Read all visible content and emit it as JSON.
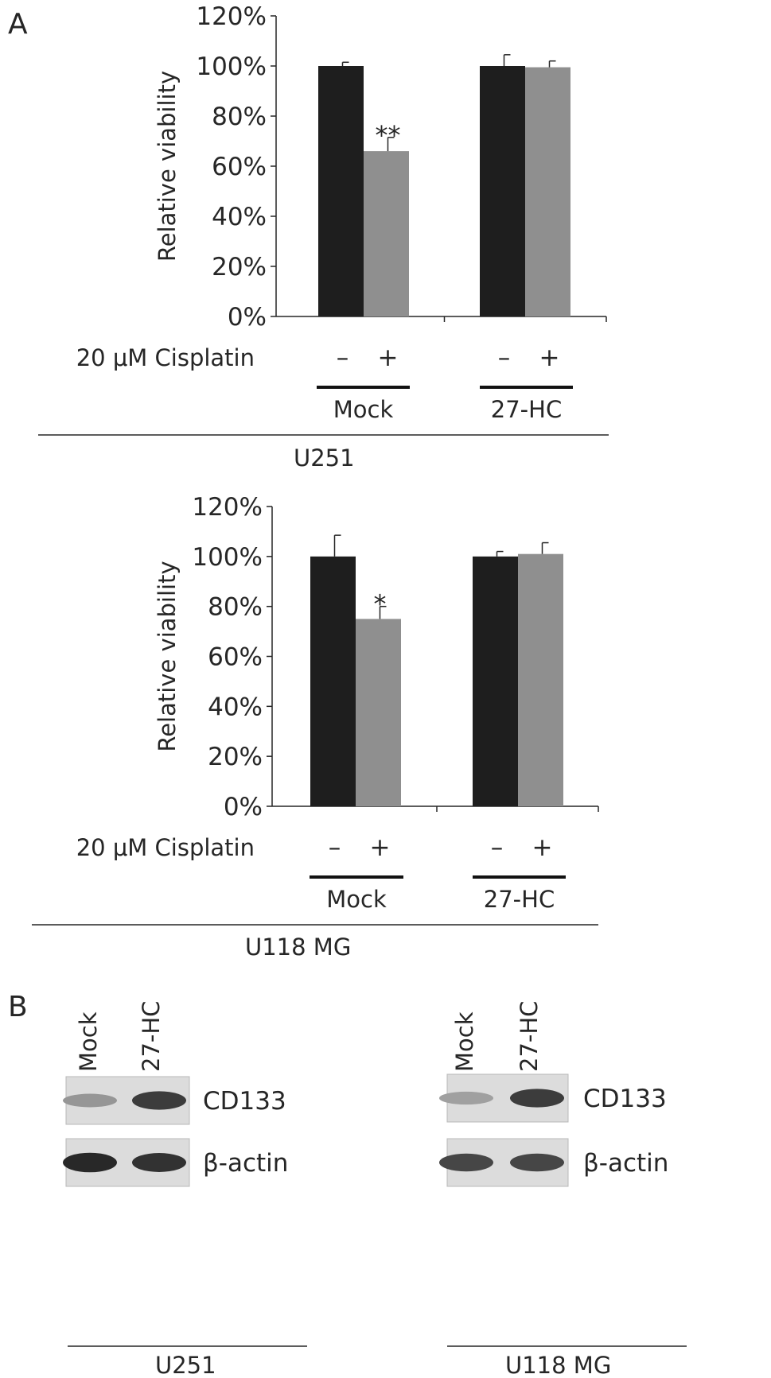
{
  "panel_labels": {
    "a": "A",
    "b": "B"
  },
  "colors": {
    "untreated": "#1e1e1e",
    "cisplatin": "#8f8f8f",
    "axis": "#262626",
    "blot_bg": "#dcdcdc"
  },
  "chart_data": [
    {
      "type": "bar",
      "cell_line": "U251",
      "ylabel": "Relative viability",
      "ylim": [
        0,
        120
      ],
      "yticks": [
        "0%",
        "20%",
        "40%",
        "60%",
        "80%",
        "100%",
        "120%"
      ],
      "treatment_label": "20 μM Cisplatin",
      "groups": [
        "Mock",
        "27-HC"
      ],
      "signs": [
        "–",
        "+",
        "–",
        "+"
      ],
      "series": [
        {
          "values": [
            100,
            100
          ],
          "errors": [
            1.5,
            4.5
          ]
        },
        {
          "values": [
            66,
            99.5
          ],
          "errors": [
            5.5,
            2.5
          ]
        }
      ],
      "annotations": [
        {
          "group": 0,
          "bar": 1,
          "text": "**"
        }
      ],
      "grid": false
    },
    {
      "type": "bar",
      "cell_line": "U118 MG",
      "ylabel": "Relative viability",
      "ylim": [
        0,
        120
      ],
      "yticks": [
        "0%",
        "20%",
        "40%",
        "60%",
        "80%",
        "100%",
        "120%"
      ],
      "treatment_label": "20 μM Cisplatin",
      "groups": [
        "Mock",
        "27-HC"
      ],
      "signs": [
        "–",
        "+",
        "–",
        "+"
      ],
      "series": [
        {
          "values": [
            100,
            100
          ],
          "errors": [
            8.5,
            2
          ]
        },
        {
          "values": [
            75,
            101
          ],
          "errors": [
            5,
            4.5
          ]
        }
      ],
      "annotations": [
        {
          "group": 0,
          "bar": 1,
          "text": "*"
        }
      ],
      "grid": false
    }
  ],
  "blots": [
    {
      "cell_line": "U251",
      "lanes": [
        "Mock",
        "27-HC"
      ],
      "bands": [
        {
          "label": "CD133",
          "intensity": [
            0.35,
            0.8
          ]
        },
        {
          "label": "β-actin",
          "intensity": [
            0.9,
            0.85
          ]
        }
      ]
    },
    {
      "cell_line": "U118 MG",
      "lanes": [
        "Mock",
        "27-HC"
      ],
      "bands": [
        {
          "label": "CD133",
          "intensity": [
            0.3,
            0.8
          ]
        },
        {
          "label": "β-actin",
          "intensity": [
            0.75,
            0.75
          ]
        }
      ]
    }
  ]
}
